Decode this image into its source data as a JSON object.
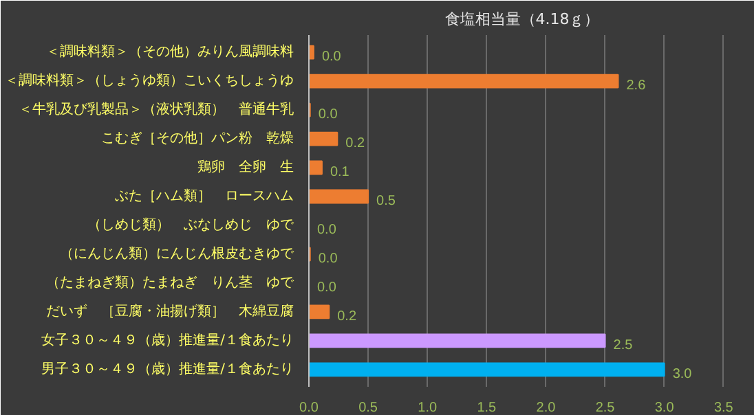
{
  "chart_data": {
    "type": "bar",
    "orientation": "horizontal",
    "title": "食塩相当量（4.18ｇ）",
    "categories": [
      "＜調味料類＞（その他）みりん風調味料",
      "＜調味料類＞（しょうゆ類）こいくちしょうゆ",
      "＜牛乳及び乳製品＞（液状乳類）　普通牛乳",
      "こむぎ［その他］パン粉　乾燥",
      "鶏卵　全卵　生",
      "ぶた［ハム類］　ロースハム",
      "（しめじ類）　ぶなしめじ　ゆで",
      "（にんじん類）にんじん根皮むきゆで",
      "（たまねぎ類）たまねぎ　りん茎　ゆで",
      "だいず　［豆腐・油揚げ類］　木綿豆腐",
      "女子３０～４９（歳）推進量/１食あたり",
      "男子３０～４９（歳）推進量/１食あたり"
    ],
    "values": [
      0.04,
      2.61,
      0.01,
      0.24,
      0.11,
      0.5,
      0.0,
      0.01,
      0.0,
      0.17,
      2.5,
      3.0
    ],
    "value_labels": [
      "0.0",
      "2.6",
      "0.0",
      "0.2",
      "0.1",
      "0.5",
      "0.0",
      "0.0",
      "0.0",
      "0.2",
      "2.5",
      "3.0"
    ],
    "colors": [
      "#ed7d31",
      "#ed7d31",
      "#ed7d31",
      "#ed7d31",
      "#ed7d31",
      "#ed7d31",
      "#ed7d31",
      "#ed7d31",
      "#ed7d31",
      "#ed7d31",
      "#cc99ff",
      "#00b0f0"
    ],
    "xlim": [
      0,
      3.6
    ],
    "xticks": [
      {
        "value": 0,
        "label": "0.0"
      },
      {
        "value": 0.5,
        "label": "0.5"
      },
      {
        "value": 1,
        "label": "1.0"
      },
      {
        "value": 1.5,
        "label": "1.5"
      },
      {
        "value": 2,
        "label": "2.0"
      },
      {
        "value": 2.5,
        "label": "2.5"
      },
      {
        "value": 3,
        "label": "3.0"
      },
      {
        "value": 3.5,
        "label": "3.5"
      }
    ],
    "grid": "x"
  }
}
